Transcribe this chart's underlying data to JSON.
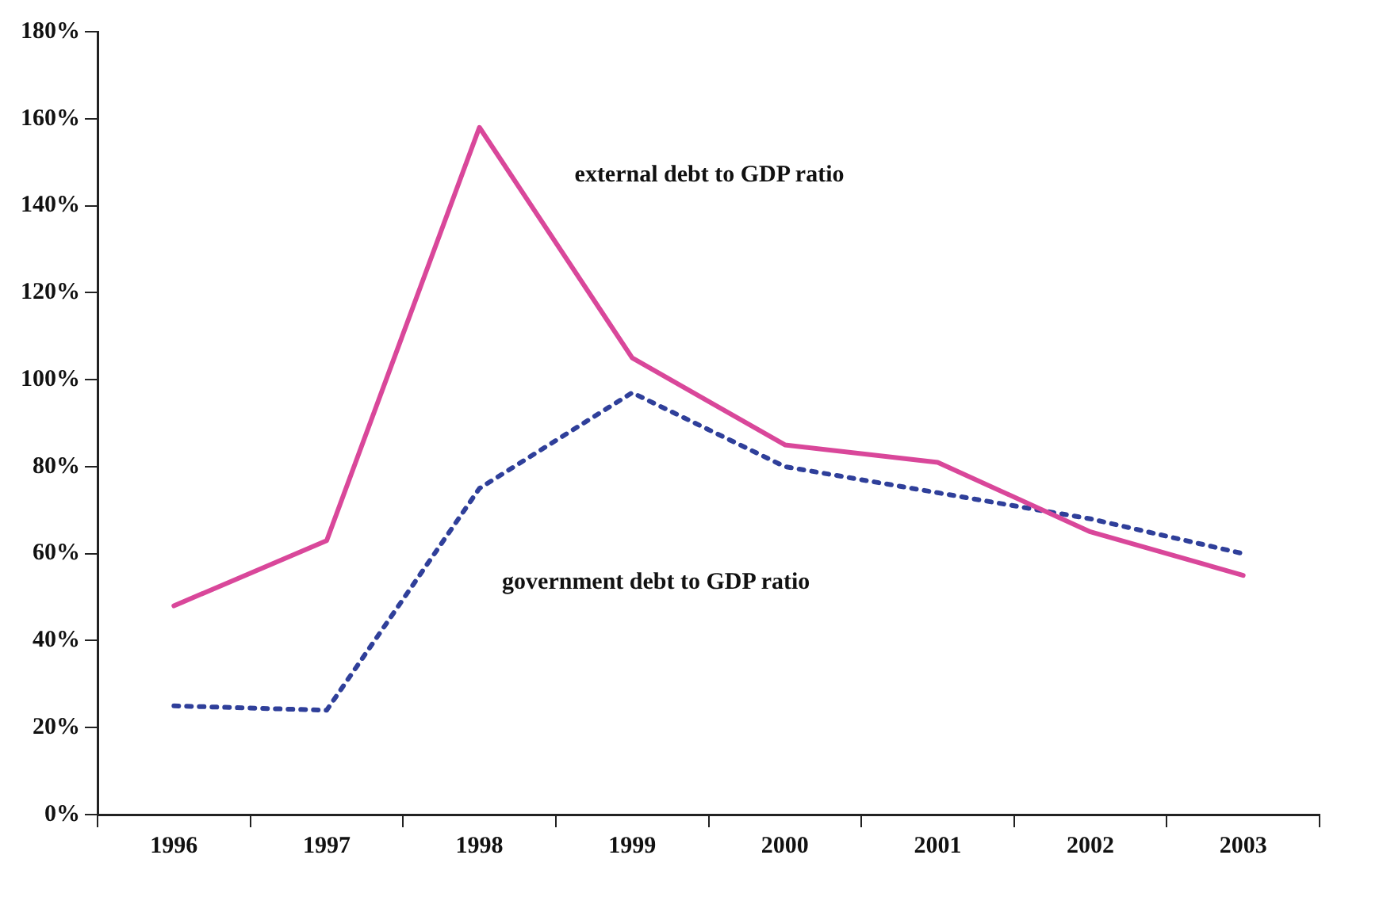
{
  "chart_data": {
    "type": "line",
    "categories": [
      "1996",
      "1997",
      "1998",
      "1999",
      "2000",
      "2001",
      "2002",
      "2003"
    ],
    "series": [
      {
        "name": "external debt to GDP ratio",
        "color": "#d9479a",
        "line_style": "solid",
        "values": [
          48,
          63,
          158,
          105,
          85,
          81,
          65,
          55
        ]
      },
      {
        "name": "government debt to GDP ratio",
        "color": "#2f3f9a",
        "line_style": "dotted",
        "values": [
          25,
          24,
          75,
          97,
          80,
          74,
          68,
          60
        ]
      }
    ],
    "ylim": [
      0,
      180
    ],
    "yticks": [
      {
        "value": 0,
        "label": "0%"
      },
      {
        "value": 20,
        "label": "20%"
      },
      {
        "value": 40,
        "label": "40%"
      },
      {
        "value": 60,
        "label": "60%"
      },
      {
        "value": 80,
        "label": "80%"
      },
      {
        "value": 100,
        "label": "100%"
      },
      {
        "value": 120,
        "label": "120%"
      },
      {
        "value": 140,
        "label": "140%"
      },
      {
        "value": 160,
        "label": "160%"
      },
      {
        "value": 180,
        "label": "180%"
      }
    ],
    "grid": false,
    "marker": "none",
    "legend": false
  }
}
